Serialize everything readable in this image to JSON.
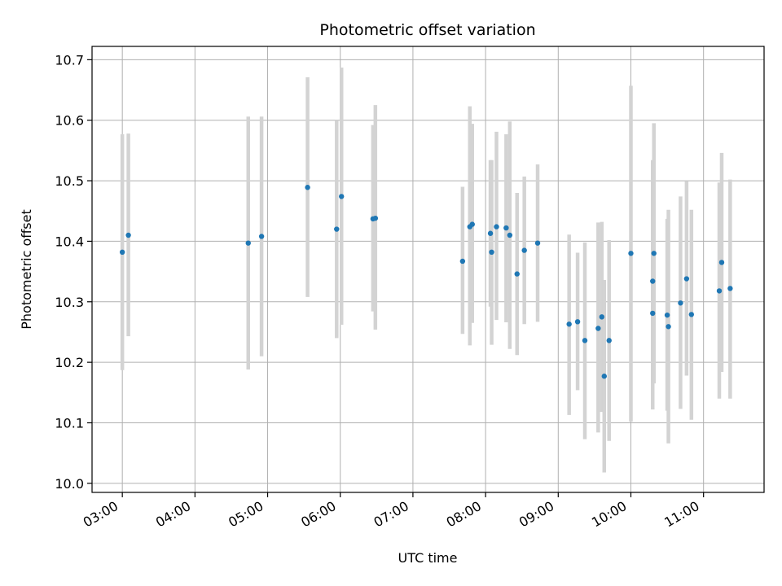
{
  "chart_data": {
    "type": "scatter",
    "title": "Photometric offset variation",
    "xlabel": "UTC time",
    "ylabel": "Photometric offset",
    "x_ticks": [
      "03:00",
      "04:00",
      "05:00",
      "06:00",
      "07:00",
      "08:00",
      "09:00",
      "10:00",
      "11:00"
    ],
    "y_ticks": [
      "10.0",
      "10.1",
      "10.2",
      "10.3",
      "10.4",
      "10.5",
      "10.6",
      "10.7"
    ],
    "xlim": [
      "02:35",
      "11:50"
    ],
    "ylim": [
      9.985,
      10.722
    ],
    "grid": true,
    "colors": {
      "point": "#1f77b4",
      "errorbar": "#d3d3d3"
    },
    "points": [
      {
        "t": "03:00",
        "y": 10.382,
        "lo": 10.187,
        "hi": 10.577
      },
      {
        "t": "03:05",
        "y": 10.41,
        "lo": 10.243,
        "hi": 10.578
      },
      {
        "t": "04:44",
        "y": 10.397,
        "lo": 10.188,
        "hi": 10.606
      },
      {
        "t": "04:55",
        "y": 10.408,
        "lo": 10.21,
        "hi": 10.606
      },
      {
        "t": "05:33",
        "y": 10.489,
        "lo": 10.308,
        "hi": 10.671
      },
      {
        "t": "05:57",
        "y": 10.42,
        "lo": 10.24,
        "hi": 10.6
      },
      {
        "t": "06:01",
        "y": 10.474,
        "lo": 10.262,
        "hi": 10.687
      },
      {
        "t": "06:27",
        "y": 10.437,
        "lo": 10.284,
        "hi": 10.592
      },
      {
        "t": "06:29",
        "y": 10.438,
        "lo": 10.254,
        "hi": 10.625
      },
      {
        "t": "07:41",
        "y": 10.367,
        "lo": 10.247,
        "hi": 10.49
      },
      {
        "t": "07:47",
        "y": 10.424,
        "lo": 10.228,
        "hi": 10.623
      },
      {
        "t": "07:49",
        "y": 10.428,
        "lo": 10.265,
        "hi": 10.594
      },
      {
        "t": "08:04",
        "y": 10.413,
        "lo": 10.292,
        "hi": 10.534
      },
      {
        "t": "08:05",
        "y": 10.382,
        "lo": 10.229,
        "hi": 10.534
      },
      {
        "t": "08:09",
        "y": 10.424,
        "lo": 10.27,
        "hi": 10.581
      },
      {
        "t": "08:17",
        "y": 10.422,
        "lo": 10.266,
        "hi": 10.577
      },
      {
        "t": "08:20",
        "y": 10.41,
        "lo": 10.222,
        "hi": 10.598
      },
      {
        "t": "08:26",
        "y": 10.346,
        "lo": 10.212,
        "hi": 10.48
      },
      {
        "t": "08:32",
        "y": 10.385,
        "lo": 10.263,
        "hi": 10.507
      },
      {
        "t": "08:43",
        "y": 10.397,
        "lo": 10.267,
        "hi": 10.527
      },
      {
        "t": "09:09",
        "y": 10.263,
        "lo": 10.113,
        "hi": 10.411
      },
      {
        "t": "09:16",
        "y": 10.267,
        "lo": 10.154,
        "hi": 10.381
      },
      {
        "t": "09:22",
        "y": 10.236,
        "lo": 10.073,
        "hi": 10.398
      },
      {
        "t": "09:33",
        "y": 10.256,
        "lo": 10.084,
        "hi": 10.431
      },
      {
        "t": "09:36",
        "y": 10.275,
        "lo": 10.118,
        "hi": 10.432
      },
      {
        "t": "09:38",
        "y": 10.177,
        "lo": 10.018,
        "hi": 10.336
      },
      {
        "t": "09:42",
        "y": 10.236,
        "lo": 10.07,
        "hi": 10.402
      },
      {
        "t": "10:00",
        "y": 10.38,
        "lo": 10.102,
        "hi": 10.657
      },
      {
        "t": "10:18",
        "y": 10.334,
        "lo": 10.167,
        "hi": 10.534
      },
      {
        "t": "10:18",
        "y": 10.281,
        "lo": 10.122,
        "hi": 10.44
      },
      {
        "t": "10:19",
        "y": 10.38,
        "lo": 10.165,
        "hi": 10.595
      },
      {
        "t": "10:30",
        "y": 10.278,
        "lo": 10.12,
        "hi": 10.437
      },
      {
        "t": "10:31",
        "y": 10.259,
        "lo": 10.066,
        "hi": 10.452
      },
      {
        "t": "10:41",
        "y": 10.298,
        "lo": 10.123,
        "hi": 10.474
      },
      {
        "t": "10:46",
        "y": 10.338,
        "lo": 10.178,
        "hi": 10.499
      },
      {
        "t": "10:50",
        "y": 10.279,
        "lo": 10.105,
        "hi": 10.452
      },
      {
        "t": "11:13",
        "y": 10.318,
        "lo": 10.14,
        "hi": 10.497
      },
      {
        "t": "11:15",
        "y": 10.365,
        "lo": 10.184,
        "hi": 10.546
      },
      {
        "t": "11:22",
        "y": 10.322,
        "lo": 10.14,
        "hi": 10.502
      }
    ]
  }
}
